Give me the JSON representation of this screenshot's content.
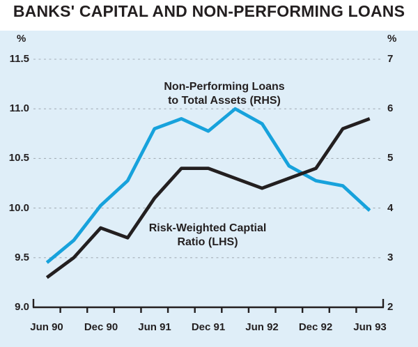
{
  "title": "BANKS' CAPITAL AND NON-PERFORMING LOANS",
  "chart_data": {
    "type": "line",
    "title": "BANKS' CAPITAL AND NON-PERFORMING LOANS",
    "background_color": "#DFEEF8",
    "gridline_color": "#9FA9B1",
    "grid": "dashed horizontal",
    "frequency": "quarterly",
    "left_axis": {
      "unit": "%",
      "min": 9.0,
      "max": 11.5,
      "ticks": [
        "11.5",
        "11.0",
        "10.5",
        "10.0",
        "9.5",
        "9.0"
      ]
    },
    "right_axis": {
      "unit": "%",
      "min": 2,
      "max": 7,
      "ticks": [
        "7",
        "6",
        "5",
        "4",
        "3",
        "2"
      ]
    },
    "x_labels": [
      "Jun 90",
      "Dec 90",
      "Jun 91",
      "Dec 91",
      "Jun 92",
      "Dec 92",
      "Jun 93"
    ],
    "quarters": [
      "Jun 90",
      "Sep 90",
      "Dec 90",
      "Mar 91",
      "Jun 91",
      "Sep 91",
      "Dec 91",
      "Mar 92",
      "Jun 92",
      "Sep 92",
      "Dec 92",
      "Mar 93",
      "Jun 93"
    ],
    "series": [
      {
        "name": "Risk-Weighted Captial Ratio (LHS)",
        "axis": "left",
        "color": "#231F20",
        "values": [
          9.3,
          9.5,
          9.8,
          9.7,
          10.1,
          10.4,
          10.4,
          10.3,
          10.2,
          10.3,
          10.4,
          10.8,
          10.9
        ]
      },
      {
        "name": "Non-Performing Loans to Total Assets (RHS)",
        "axis": "right",
        "color": "#17A2DC",
        "values": [
          2.9,
          3.35,
          4.05,
          4.55,
          5.6,
          5.8,
          5.55,
          6.0,
          5.7,
          4.85,
          4.55,
          4.45,
          3.95
        ]
      }
    ],
    "annotations": [
      {
        "line1": "Non-Performing Loans",
        "line2": "to Total Assets (RHS)"
      },
      {
        "line1": "Risk-Weighted Captial",
        "line2": "Ratio (LHS)"
      }
    ]
  }
}
